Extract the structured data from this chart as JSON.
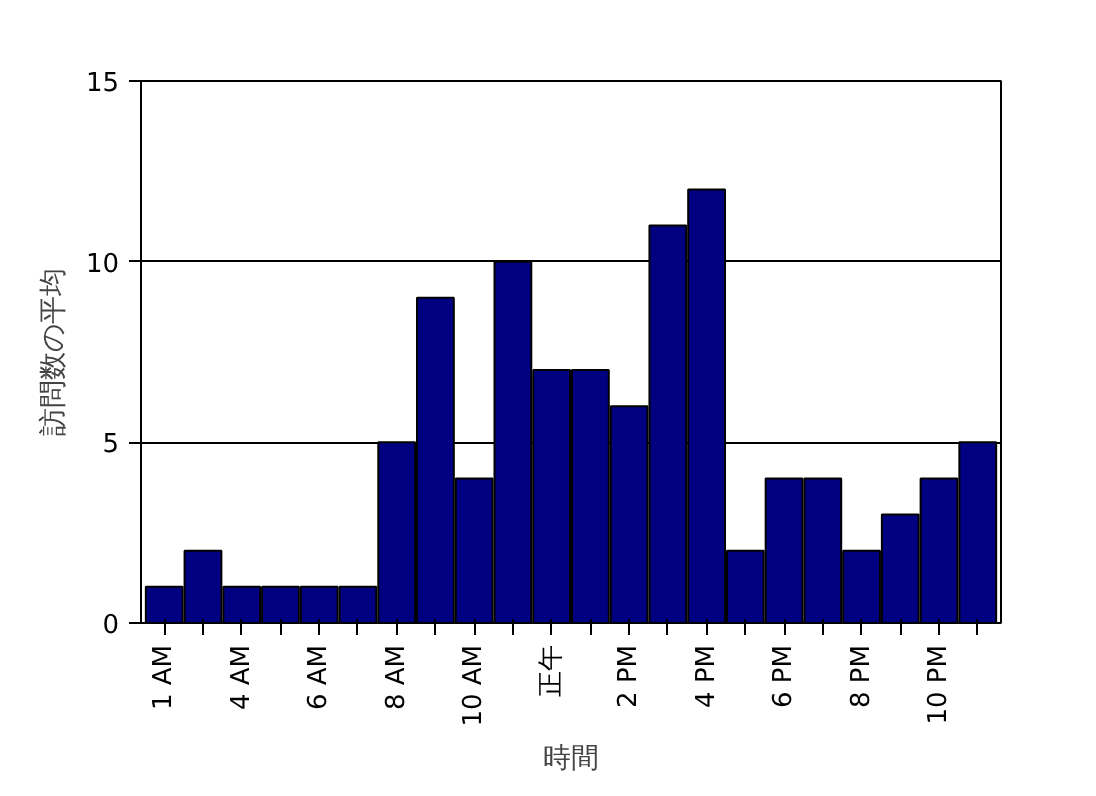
{
  "chart_data": {
    "type": "bar",
    "xlabel": "時間",
    "ylabel": "訪問数の平均",
    "categories": [
      "1 AM",
      null,
      "4 AM",
      null,
      "6 AM",
      null,
      "8 AM",
      null,
      "10 AM",
      null,
      "正午",
      null,
      "2 PM",
      null,
      "4 PM",
      null,
      "6 PM",
      null,
      "8 PM",
      null,
      "10 PM",
      null
    ],
    "values": [
      1,
      2,
      1,
      1,
      1,
      1,
      5,
      9,
      4,
      10,
      7,
      7,
      6,
      11,
      12,
      2,
      4,
      4,
      2,
      3,
      4,
      5
    ],
    "color": "#000080",
    "ylim": [
      0,
      15
    ],
    "yticks": [
      0,
      5,
      10,
      15
    ],
    "grid": "y"
  }
}
